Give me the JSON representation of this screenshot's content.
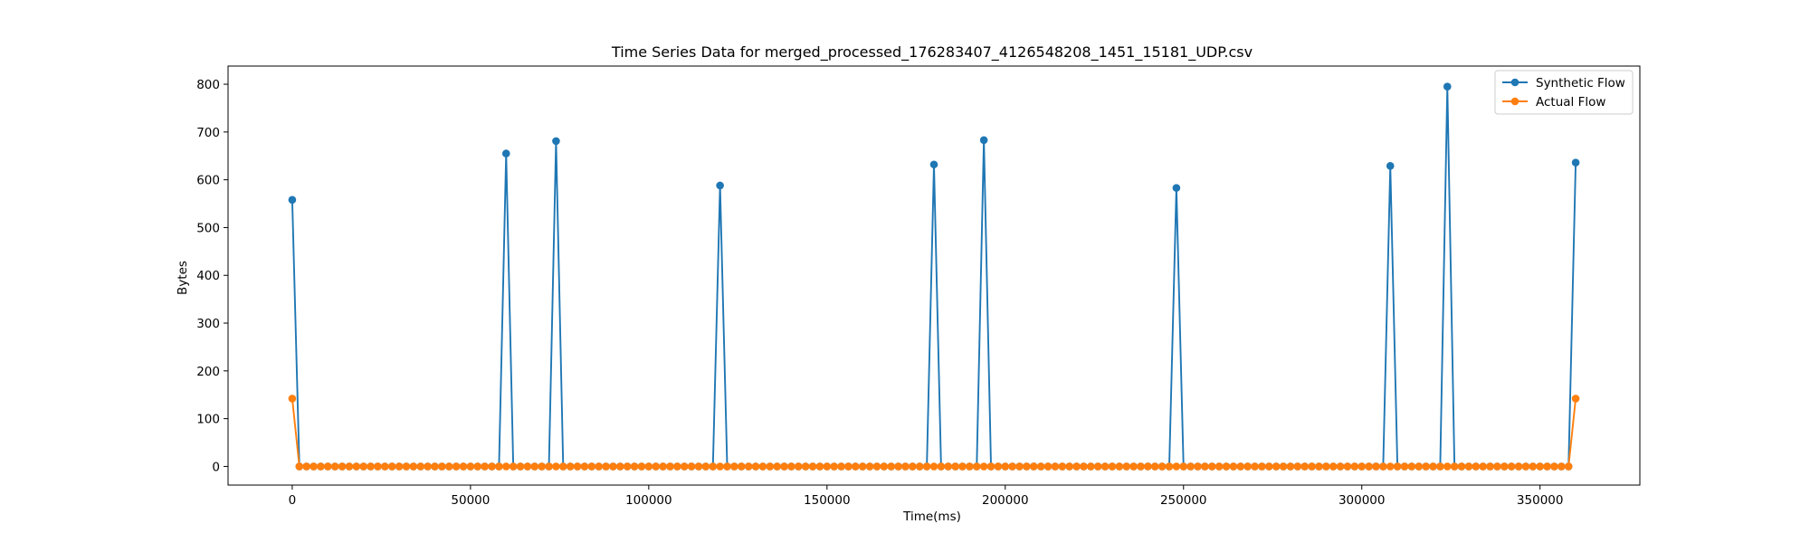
{
  "chart_data": {
    "type": "line",
    "title": "Time Series Data for merged_processed_176283407_4126548208_1451_15181_UDP.csv",
    "xlabel": "Time(ms)",
    "ylabel": "Bytes",
    "xlim": [
      -18000,
      378000
    ],
    "ylim": [
      -39,
      838
    ],
    "xticks": [
      0,
      50000,
      100000,
      150000,
      200000,
      250000,
      300000,
      350000
    ],
    "xtick_labels": [
      "0",
      "50000",
      "100000",
      "150000",
      "200000",
      "250000",
      "300000",
      "350000"
    ],
    "yticks": [
      0,
      100,
      200,
      300,
      400,
      500,
      600,
      700,
      800
    ],
    "ytick_labels": [
      "0",
      "100",
      "200",
      "300",
      "400",
      "500",
      "600",
      "700",
      "800"
    ],
    "grid": false,
    "legend_position": "top-right",
    "x_step": 2000,
    "x_start": 0,
    "x_end": 360000,
    "series": [
      {
        "name": "Synthetic Flow",
        "color": "#1f77b4",
        "marker": "circle",
        "default": 0,
        "nonzero_points": [
          {
            "x": 0,
            "y": 558
          },
          {
            "x": 60000,
            "y": 655
          },
          {
            "x": 74000,
            "y": 681
          },
          {
            "x": 120000,
            "y": 588
          },
          {
            "x": 180000,
            "y": 632
          },
          {
            "x": 194000,
            "y": 683
          },
          {
            "x": 248000,
            "y": 583
          },
          {
            "x": 308000,
            "y": 629
          },
          {
            "x": 324000,
            "y": 795
          },
          {
            "x": 360000,
            "y": 636
          }
        ]
      },
      {
        "name": "Actual Flow",
        "color": "#ff7f0e",
        "marker": "circle",
        "default": 0,
        "nonzero_points": [
          {
            "x": 0,
            "y": 142
          },
          {
            "x": 360000,
            "y": 142
          }
        ]
      }
    ]
  }
}
